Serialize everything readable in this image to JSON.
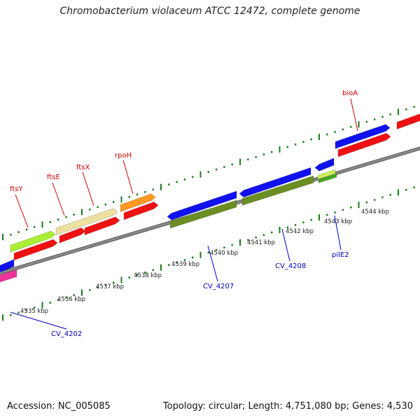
{
  "title": "Chromobacterium violaceum ATCC 12472, complete genome",
  "footer": {
    "accession": "Accession: NC_005085",
    "summary": "Topology: circular; Length: 4,751,080 bp; Genes: 4,530"
  },
  "colors": {
    "backbone": "#8a8a8a",
    "tick": "#1a7a1a",
    "label_top": "#cc0000",
    "label_bottom": "#0000bb"
  },
  "position_labels": [
    {
      "text": "4535 kbp",
      "kbp": 4535
    },
    {
      "text": "4536 kbp",
      "kbp": 4536
    },
    {
      "text": "4537 kbp",
      "kbp": 4537
    },
    {
      "text": "4538 kbp",
      "kbp": 4538
    },
    {
      "text": "4539 kbp",
      "kbp": 4539
    },
    {
      "text": "4540 kbp",
      "kbp": 4540
    },
    {
      "text": "4541 kbp",
      "kbp": 4541
    },
    {
      "text": "4542 kbp",
      "kbp": 4542
    },
    {
      "text": "4543 kbp",
      "kbp": 4543
    },
    {
      "text": "4544 kbp",
      "kbp": 4544
    }
  ],
  "features": [
    {
      "name": "ftsY",
      "color": "#aaee33"
    },
    {
      "name": "ftsY-red",
      "color": "#ee1111"
    },
    {
      "name": "ftsE",
      "color": "#eee0a0"
    },
    {
      "name": "ftsE-red",
      "color": "#ee1111"
    },
    {
      "name": "ftsX",
      "color": "#ee1111"
    },
    {
      "name": "rpoH",
      "color": "#ff9922"
    },
    {
      "name": "rpoH-red",
      "color": "#ee1111"
    },
    {
      "name": "CV_4207",
      "color": "#1111ee"
    },
    {
      "name": "CV_4207-green",
      "color": "#6b8e23"
    },
    {
      "name": "CV_4208",
      "color": "#1111ee"
    },
    {
      "name": "CV_4208-green",
      "color": "#6b8e23"
    },
    {
      "name": "pilE2-blue",
      "color": "#1111ee"
    },
    {
      "name": "pilE2-lime",
      "color": "#ccee55"
    },
    {
      "name": "pilE2-green",
      "color": "#44aa22"
    },
    {
      "name": "bioA-blue",
      "color": "#1111ee"
    },
    {
      "name": "bioA",
      "color": "#ee1111"
    },
    {
      "name": "right-edge-red",
      "color": "#ee1111"
    },
    {
      "name": "CV_4202",
      "color": "#1111ee"
    },
    {
      "name": "CV_4202-pink",
      "color": "#ee3399"
    }
  ],
  "gene_labels": [
    {
      "text": "ftsY",
      "strand": "top"
    },
    {
      "text": "ftsE",
      "strand": "top"
    },
    {
      "text": "ftsX",
      "strand": "top"
    },
    {
      "text": "rpoH",
      "strand": "top"
    },
    {
      "text": "bioA",
      "strand": "top"
    },
    {
      "text": "CV_4202",
      "strand": "bottom"
    },
    {
      "text": "CV_4207",
      "strand": "bottom"
    },
    {
      "text": "CV_4208",
      "strand": "bottom"
    },
    {
      "text": "pilE2",
      "strand": "bottom"
    }
  ]
}
